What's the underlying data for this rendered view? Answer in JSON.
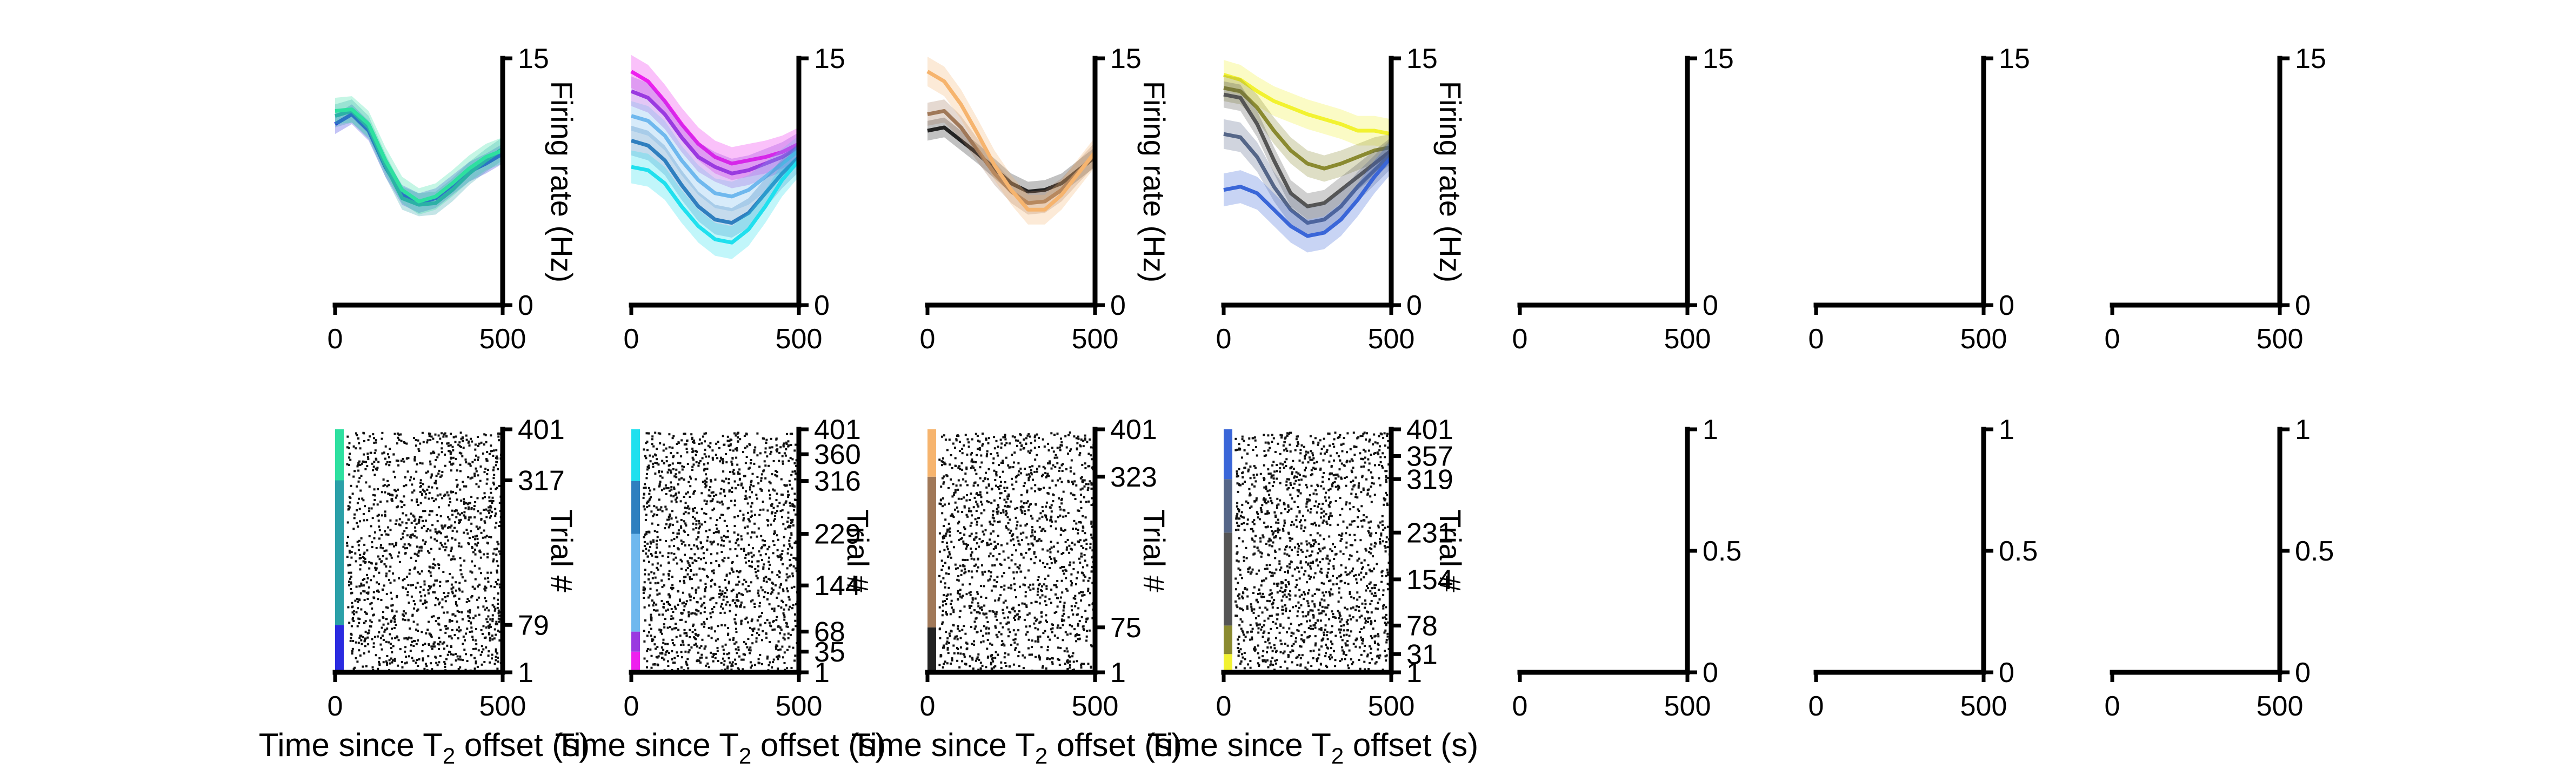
{
  "colors": {
    "black": "#222222",
    "dark_grey": "#555555",
    "blue": "#2a2ae0",
    "teal_blue": "#2f7fbf",
    "teal": "#2aa0a8",
    "green": "#2ee0a0",
    "cyan": "#20e0ee",
    "sky": "#6fb8ee",
    "purple": "#9a3ae0",
    "magenta": "#ee20ee",
    "peach": "#f6b46e",
    "brown": "#a07858",
    "royal": "#3a66d8",
    "slate": "#556688",
    "olive": "#8a8a30",
    "yellow": "#f2f230"
  },
  "xlabel_text": "Time since T",
  "xlabel_sub": "2",
  "xlabel_tail": " offset (s)",
  "chart_data": [
    {
      "type": "line",
      "panel": "top-1",
      "ylabel": "Firing rate (Hz)",
      "ylim": [
        0,
        15
      ],
      "xlim": [
        0,
        500
      ],
      "xticks": [
        "0",
        "500"
      ],
      "yticks": [
        "0",
        "15"
      ],
      "x": [
        0,
        50,
        100,
        150,
        200,
        250,
        300,
        350,
        400,
        450,
        500
      ],
      "series": [
        {
          "color": "blue",
          "values": [
            11.0,
            11.6,
            10.6,
            8.4,
            6.7,
            6.2,
            6.5,
            7.3,
            8.1,
            8.6,
            9.2
          ],
          "band": 0.6
        },
        {
          "color": "teal",
          "values": [
            11.5,
            11.8,
            10.8,
            8.5,
            6.5,
            6.1,
            6.2,
            7.0,
            8.0,
            8.8,
            9.5
          ],
          "band": 0.7
        },
        {
          "color": "green",
          "values": [
            11.8,
            11.9,
            11.0,
            8.8,
            7.0,
            6.3,
            6.6,
            7.4,
            8.3,
            9.0,
            9.4
          ],
          "band": 0.8
        }
      ]
    },
    {
      "type": "line",
      "panel": "top-2",
      "ylabel": "",
      "ylim": [
        0,
        15
      ],
      "xlim": [
        0,
        500
      ],
      "xticks": [
        "0",
        "500"
      ],
      "yticks": [
        "0",
        "15"
      ],
      "x": [
        0,
        50,
        100,
        150,
        200,
        250,
        300,
        350,
        400,
        450,
        500
      ],
      "series": [
        {
          "color": "magenta",
          "values": [
            14.2,
            13.6,
            12.4,
            11.0,
            9.8,
            9.0,
            8.6,
            8.8,
            9.0,
            9.3,
            9.8
          ],
          "band": 1.0
        },
        {
          "color": "purple",
          "values": [
            13.0,
            12.6,
            11.6,
            10.2,
            9.0,
            8.4,
            8.0,
            8.2,
            8.6,
            9.0,
            9.6
          ],
          "band": 0.9
        },
        {
          "color": "sky",
          "values": [
            11.5,
            11.2,
            10.3,
            8.8,
            7.6,
            6.8,
            6.6,
            7.0,
            7.8,
            8.6,
            9.4
          ],
          "band": 0.9
        },
        {
          "color": "teal_blue",
          "values": [
            10.0,
            9.7,
            8.8,
            7.3,
            6.0,
            5.2,
            5.0,
            5.6,
            6.8,
            8.0,
            9.0
          ],
          "band": 0.9
        },
        {
          "color": "cyan",
          "values": [
            8.4,
            8.2,
            7.4,
            6.0,
            4.8,
            4.0,
            3.8,
            4.6,
            6.0,
            7.6,
            8.8
          ],
          "band": 1.0
        }
      ]
    },
    {
      "type": "line",
      "panel": "top-3",
      "ylabel": "Firing rate (Hz)",
      "ylim": [
        0,
        15
      ],
      "xlim": [
        0,
        500
      ],
      "xticks": [
        "0",
        "500"
      ],
      "yticks": [
        "0",
        "15"
      ],
      "x": [
        0,
        50,
        100,
        150,
        200,
        250,
        300,
        350,
        400,
        450,
        500
      ],
      "series": [
        {
          "color": "black",
          "values": [
            10.6,
            10.8,
            10.0,
            9.2,
            8.3,
            7.4,
            6.9,
            7.0,
            7.4,
            8.2,
            9.0
          ],
          "band": 0.6
        },
        {
          "color": "brown",
          "values": [
            11.6,
            11.8,
            10.8,
            9.4,
            8.0,
            6.9,
            6.2,
            6.3,
            7.0,
            8.1,
            9.2
          ],
          "band": 0.7
        },
        {
          "color": "peach",
          "values": [
            14.2,
            13.6,
            12.2,
            10.4,
            8.5,
            7.0,
            5.8,
            5.8,
            6.7,
            8.0,
            9.3
          ],
          "band": 0.9
        }
      ]
    },
    {
      "type": "line",
      "panel": "top-4",
      "ylabel": "Firing rate (Hz)",
      "ylim": [
        0,
        15
      ],
      "xlim": [
        0,
        500
      ],
      "xticks": [
        "0",
        "500"
      ],
      "yticks": [
        "0",
        "15"
      ],
      "x": [
        0,
        50,
        100,
        150,
        200,
        250,
        300,
        350,
        400,
        450,
        500
      ],
      "series": [
        {
          "color": "yellow",
          "values": [
            14.0,
            13.7,
            13.0,
            12.4,
            12.0,
            11.6,
            11.3,
            11.0,
            10.6,
            10.6,
            10.4
          ],
          "band": 0.9
        },
        {
          "color": "olive",
          "values": [
            13.2,
            13.0,
            12.0,
            10.6,
            9.4,
            8.6,
            8.3,
            8.6,
            9.0,
            9.4,
            9.6
          ],
          "band": 0.8
        },
        {
          "color": "dark_grey",
          "values": [
            12.8,
            12.6,
            11.0,
            8.8,
            6.8,
            6.0,
            6.2,
            7.0,
            7.8,
            8.6,
            9.4
          ],
          "band": 0.8
        },
        {
          "color": "slate",
          "values": [
            10.4,
            10.2,
            9.0,
            7.2,
            5.8,
            5.0,
            5.2,
            6.0,
            7.2,
            8.2,
            9.2
          ],
          "band": 0.9
        },
        {
          "color": "royal",
          "values": [
            7.0,
            7.2,
            6.8,
            5.8,
            4.8,
            4.2,
            4.4,
            5.2,
            6.4,
            7.8,
            9.0
          ],
          "band": 1.0
        }
      ]
    },
    {
      "type": "line",
      "panel": "top-5",
      "ylabel": "",
      "ylim": [
        0,
        15
      ],
      "xlim": [
        0,
        500
      ],
      "xticks": [
        "0",
        "500"
      ],
      "yticks": [
        "0",
        "15"
      ],
      "x": [],
      "series": []
    },
    {
      "type": "line",
      "panel": "top-6",
      "ylabel": "",
      "ylim": [
        0,
        15
      ],
      "xlim": [
        0,
        500
      ],
      "xticks": [
        "0",
        "500"
      ],
      "yticks": [
        "0",
        "15"
      ],
      "x": [],
      "series": []
    },
    {
      "type": "line",
      "panel": "top-7",
      "ylabel": "",
      "ylim": [
        0,
        15
      ],
      "xlim": [
        0,
        500
      ],
      "xticks": [
        "0",
        "500"
      ],
      "yticks": [
        "0",
        "15"
      ],
      "x": [],
      "series": []
    },
    {
      "type": "scatter",
      "panel": "bottom-1",
      "ylabel": "Trial #",
      "ylim": [
        1,
        401
      ],
      "xlim": [
        0,
        500
      ],
      "xticks": [
        "0",
        "500"
      ],
      "yticks": [
        1,
        79,
        317,
        401
      ],
      "ytick_labels": [
        "1",
        "79",
        "317",
        "401"
      ],
      "trial_groups": [
        {
          "color": "blue",
          "from": 1,
          "to": 79
        },
        {
          "color": "teal",
          "from": 79,
          "to": 317
        },
        {
          "color": "green",
          "from": 317,
          "to": 401
        }
      ],
      "spike_count": 1400
    },
    {
      "type": "scatter",
      "panel": "bottom-2",
      "ylabel": "Trial #",
      "ylim": [
        1,
        401
      ],
      "xlim": [
        0,
        500
      ],
      "xticks": [
        "0",
        "500"
      ],
      "yticks": [
        1,
        35,
        68,
        144,
        229,
        316,
        360,
        401
      ],
      "ytick_labels": [
        "1",
        "35",
        "68",
        "144",
        "229",
        "316",
        "360",
        "401"
      ],
      "trial_groups": [
        {
          "color": "magenta",
          "from": 1,
          "to": 35
        },
        {
          "color": "purple",
          "from": 35,
          "to": 68
        },
        {
          "color": "sky",
          "from": 68,
          "to": 229
        },
        {
          "color": "teal_blue",
          "from": 229,
          "to": 316
        },
        {
          "color": "cyan",
          "from": 316,
          "to": 401
        }
      ],
      "spike_count": 1500
    },
    {
      "type": "scatter",
      "panel": "bottom-3",
      "ylabel": "Trial #",
      "ylim": [
        1,
        401
      ],
      "xlim": [
        0,
        500
      ],
      "xticks": [
        "0",
        "500"
      ],
      "yticks": [
        1,
        75,
        323,
        401
      ],
      "ytick_labels": [
        "1",
        "75",
        "323",
        "401"
      ],
      "trial_groups": [
        {
          "color": "black",
          "from": 1,
          "to": 75
        },
        {
          "color": "brown",
          "from": 75,
          "to": 323
        },
        {
          "color": "peach",
          "from": 323,
          "to": 401
        }
      ],
      "spike_count": 1400
    },
    {
      "type": "scatter",
      "panel": "bottom-4",
      "ylabel": "Trial #",
      "ylim": [
        1,
        401
      ],
      "xlim": [
        0,
        500
      ],
      "xticks": [
        "0",
        "500"
      ],
      "yticks": [
        1,
        31,
        78,
        154,
        231,
        319,
        357,
        401
      ],
      "ytick_labels": [
        "1",
        "31",
        "78",
        "154",
        "231",
        "319",
        "357",
        "401"
      ],
      "trial_groups": [
        {
          "color": "yellow",
          "from": 1,
          "to": 31
        },
        {
          "color": "olive",
          "from": 31,
          "to": 78
        },
        {
          "color": "dark_grey",
          "from": 78,
          "to": 231
        },
        {
          "color": "slate",
          "from": 231,
          "to": 319
        },
        {
          "color": "royal",
          "from": 319,
          "to": 401
        }
      ],
      "spike_count": 1500
    },
    {
      "type": "scatter",
      "panel": "bottom-5",
      "ylabel": "",
      "ylim": [
        0,
        1
      ],
      "xlim": [
        0,
        500
      ],
      "xticks": [
        "0",
        "500"
      ],
      "yticks": [
        0,
        0.5,
        1
      ],
      "ytick_labels": [
        "0",
        "0.5",
        "1"
      ],
      "trial_groups": [],
      "spike_count": 0
    },
    {
      "type": "scatter",
      "panel": "bottom-6",
      "ylabel": "",
      "ylim": [
        0,
        1
      ],
      "xlim": [
        0,
        500
      ],
      "xticks": [
        "0",
        "500"
      ],
      "yticks": [
        0,
        0.5,
        1
      ],
      "ytick_labels": [
        "0",
        "0.5",
        "1"
      ],
      "trial_groups": [],
      "spike_count": 0
    },
    {
      "type": "scatter",
      "panel": "bottom-7",
      "ylabel": "",
      "ylim": [
        0,
        1
      ],
      "xlim": [
        0,
        500
      ],
      "xticks": [
        "0",
        "500"
      ],
      "yticks": [
        0,
        0.5,
        1
      ],
      "ytick_labels": [
        "0",
        "0.5",
        "1"
      ],
      "trial_groups": [],
      "spike_count": 0
    }
  ]
}
